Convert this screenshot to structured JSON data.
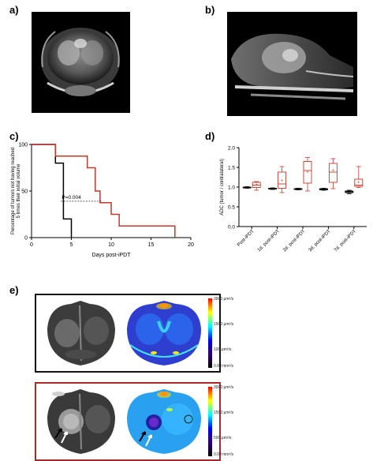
{
  "panels": {
    "a": "a)",
    "b": "b)",
    "c": "c)",
    "d": "d)",
    "e": "e)"
  },
  "colors": {
    "ipdt": "#c0392b",
    "control": "#000000",
    "healthy_frame": "#111111",
    "tumor_frame": "#a52a2a"
  },
  "chart_data": [
    {
      "id": "c",
      "type": "line",
      "step": true,
      "xlabel": "Days post-iPDT",
      "ylabel": "Percentage of tumors not having reached 5 times their initial volume",
      "xticks": [
        0,
        5,
        10,
        15,
        20
      ],
      "yticks": [
        0,
        50,
        100
      ],
      "xlim": [
        0,
        20
      ],
      "ylim": [
        0,
        100
      ],
      "annotation": "P=0.004",
      "series": [
        {
          "color": "#000000",
          "points": [
            [
              0,
              100
            ],
            [
              3,
              100
            ],
            [
              3,
              80
            ],
            [
              4,
              80
            ],
            [
              4,
              20
            ],
            [
              5,
              20
            ],
            [
              5,
              0
            ]
          ]
        },
        {
          "color": "#c0392b",
          "points": [
            [
              0,
              100
            ],
            [
              3,
              100
            ],
            [
              3,
              87.5
            ],
            [
              7,
              87.5
            ],
            [
              7,
              75
            ],
            [
              8,
              75
            ],
            [
              8,
              50
            ],
            [
              8.6,
              50
            ],
            [
              8.6,
              37.5
            ],
            [
              10,
              37.5
            ],
            [
              10,
              25
            ],
            [
              11,
              25
            ],
            [
              11,
              12.5
            ],
            [
              18,
              12.5
            ],
            [
              18,
              0
            ]
          ]
        }
      ]
    },
    {
      "id": "d",
      "type": "box",
      "ylabel": "ADC (tumor / contralateral)",
      "yticks": [
        "0.0",
        "0.5",
        "1.0",
        "1.5",
        "2.0"
      ],
      "ylim": [
        0,
        2.0
      ],
      "categories": [
        "Post-iPDT",
        "1d. post-iPDT",
        "2d. post-iPDT",
        "3d. post-iPDT",
        "7d. post-iPDT"
      ],
      "boxes": [
        {
          "cat": 0,
          "color": "#000000",
          "min": 0.97,
          "q1": 0.98,
          "median": 0.99,
          "q3": 1.0,
          "max": 1.01,
          "mean": 0.99
        },
        {
          "cat": 0,
          "color": "#c0392b",
          "min": 0.92,
          "q1": 0.99,
          "median": 1.05,
          "q3": 1.12,
          "max": 1.14,
          "mean": 1.06
        },
        {
          "cat": 1,
          "color": "#000000",
          "min": 0.94,
          "q1": 0.95,
          "median": 0.96,
          "q3": 0.97,
          "max": 0.98,
          "mean": 0.96
        },
        {
          "cat": 1,
          "color": "#c0392b",
          "min": 0.86,
          "q1": 0.97,
          "median": 1.08,
          "q3": 1.38,
          "max": 1.52,
          "mean": 1.17
        },
        {
          "cat": 2,
          "color": "#000000",
          "min": 0.93,
          "q1": 0.94,
          "median": 0.95,
          "q3": 0.96,
          "max": 0.97,
          "mean": 0.95
        },
        {
          "cat": 2,
          "color": "#c0392b",
          "min": 0.9,
          "q1": 1.1,
          "median": 1.42,
          "q3": 1.65,
          "max": 1.75,
          "mean": 1.38
        },
        {
          "cat": 3,
          "color": "#000000",
          "min": 0.92,
          "q1": 0.93,
          "median": 0.95,
          "q3": 0.96,
          "max": 0.97,
          "mean": 0.95
        },
        {
          "cat": 3,
          "color": "#c0392b",
          "min": 0.96,
          "q1": 1.12,
          "median": 1.38,
          "q3": 1.6,
          "max": 1.72,
          "mean": 1.42
        },
        {
          "cat": 4,
          "color": "#000000",
          "min": 0.83,
          "q1": 0.86,
          "median": 0.88,
          "q3": 0.9,
          "max": 0.92,
          "mean": 0.87
        },
        {
          "cat": 4,
          "color": "#c0392b",
          "min": 0.99,
          "q1": 1.02,
          "median": 1.05,
          "q3": 1.2,
          "max": 1.52,
          "mean": 1.12
        }
      ]
    }
  ],
  "colorbar_top": {
    "label_top": "3000 μm²/s",
    "label_mid": "1500 μm²/s",
    "label_low": "100 μm²/s",
    "label_bottom": "0.00 mm²/s"
  },
  "colorbar_bottom": {
    "label_top": "3000 μm²/s",
    "label_mid": "1500 μm²/s",
    "label_low": "500 μm²/s",
    "label_bottom": "0.00 mm²/s"
  }
}
